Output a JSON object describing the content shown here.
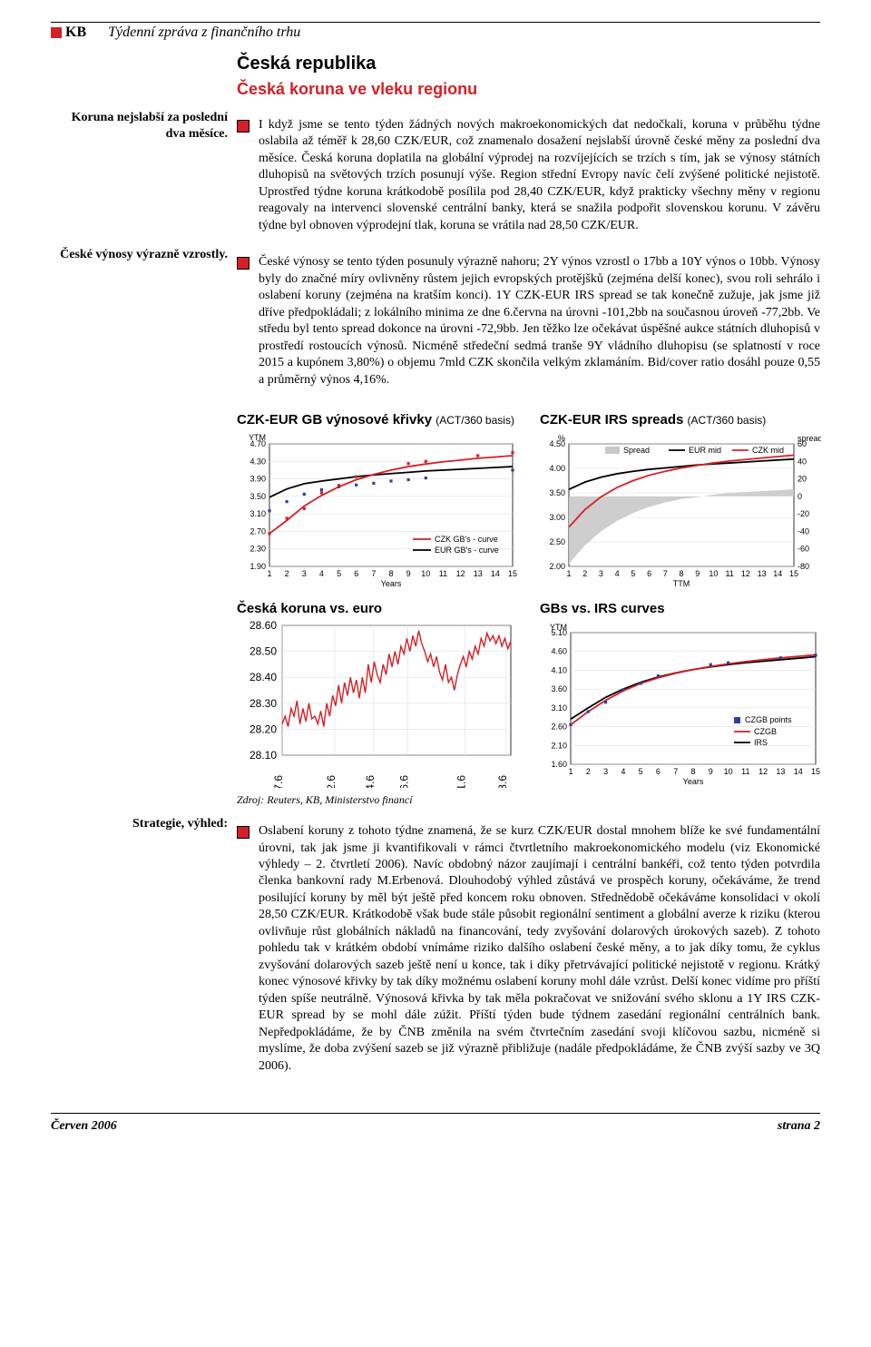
{
  "header": {
    "logo_text": "KB",
    "report_title": "Týdenní zpráva z finančního trhu"
  },
  "titles": {
    "country": "Česká republika",
    "subtitle": "Česká koruna ve vleku regionu"
  },
  "left_notes": {
    "p1": "Koruna nejslabší za poslední dva měsíce.",
    "p2": "České výnosy výrazně vzrostly.",
    "p3": "Strategie, výhled:"
  },
  "paras": {
    "p1": "I když jsme se tento týden žádných nových makroekonomických dat nedočkali, koruna v průběhu týdne oslabila až téměř k 28,60 CZK/EUR, což znamenalo dosažení nejslabší úrovně české měny za poslední dva měsíce. Česká koruna doplatila na globální výprodej na rozvíjejících se trzích s tím, jak se výnosy státních dluhopisů na světových trzích posunují výše. Region střední Evropy navíc čelí zvýšené politické nejistotě. Uprostřed týdne koruna krátkodobě posílila pod 28,40 CZK/EUR, když prakticky všechny měny v regionu reagovaly na intervenci slovenské centrální banky, která se snažila podpořit slovenskou korunu. V závěru týdne byl obnoven výprodejní tlak, koruna se vrátila nad 28,50 CZK/EUR.",
    "p2": "České výnosy se tento týden posunuly výrazně nahoru; 2Y výnos vzrostl o 17bb a 10Y výnos o 10bb. Výnosy byly do značné míry ovlivněny růstem jejich evropských protějšků (zejména delší konec), svou roli sehrálo i oslabení koruny (zejména na kratším konci). 1Y CZK-EUR IRS spread se tak konečně zužuje, jak jsme již dříve předpokládali; z lokálního minima ze dne 6.června na úrovni -101,2bb na současnou úroveň -77,2bb. Ve středu byl tento spread dokonce na úrovni -72,9bb. Jen těžko lze očekávat úspěšné aukce státních dluhopisů v prostředí rostoucích výnosů. Nicméně středeční sedmá tranše 9Y vládního dluhopisu (se splatností v roce 2015 a kupónem 3,80%) o objemu 7mld CZK skončila velkým zklamáním. Bid/cover ratio dosáhl pouze 0,55 a průměrný výnos 4,16%.",
    "p3": "Oslabení koruny z tohoto týdne znamená, že se kurz CZK/EUR dostal mnohem blíže ke své fundamentální úrovni, tak jak jsme ji kvantifikovali v rámci čtvrtletního makroekonomického modelu (viz Ekonomické výhledy – 2. čtvrtletí 2006). Navíc obdobný názor zaujímají i centrální bankéři, což tento týden potvrdila členka bankovní rady M.Erbenová. Dlouhodobý výhled zůstává ve prospěch koruny, očekáváme, že trend posilující koruny by měl být ještě před koncem roku obnoven. Střednědobě očekáváme konsolidaci v okolí 28,50 CZK/EUR. Krátkodobě však bude stále působit regionální sentiment a globální averze k riziku (kterou ovlivňuje růst globálních nákladů na financování, tedy zvyšování dolarových úrokových sazeb). Z tohoto pohledu tak v krátkém období vnímáme riziko dalšího oslabení české měny, a to jak díky tomu, že cyklus zvyšování dolarových sazeb ještě není u konce, tak i díky přetrvávající politické nejistotě v regionu. Krátký konec výnosové křivky by tak díky možnému oslabení koruny mohl dále vzrůst. Delší konec vidíme pro příští týden spíše neutrálně. Výnosová křivka by tak měla pokračovat ve snižování svého sklonu a 1Y IRS CZK-EUR spread by se mohl dále zúžit. Příští týden bude týdnem zasedání regionální centrálních bank. Nepředpokládáme, že by ČNB změnila na svém čtvrtečním zasedání svoji klíčovou sazbu, nicméně si myslíme, že doba zvýšení sazeb se již výrazně přibližuje (nadále předpokládáme, že ČNB zvýší sazby ve 3Q 2006)."
  },
  "chart_titles": {
    "c1": "CZK-EUR GB výnosové křivky",
    "c1_sub": "(ACT/360 basis)",
    "c2": "CZK-EUR IRS spreads",
    "c2_sub": "(ACT/360 basis)",
    "c3": "Česká koruna vs. euro",
    "c4": "GBs vs. IRS curves"
  },
  "source_line": "Zdroj: Reuters, KB, Ministerstvo financí",
  "footer": {
    "left": "Červen 2006",
    "right": "strana 2"
  },
  "chart1": {
    "type": "line",
    "ylabel": "YTM",
    "xlabel": "Years",
    "ylim": [
      1.9,
      4.7
    ],
    "yticks": [
      1.9,
      2.3,
      2.7,
      3.1,
      3.5,
      3.9,
      4.3,
      4.7
    ],
    "xticks": [
      1,
      2,
      3,
      4,
      5,
      6,
      7,
      8,
      9,
      10,
      11,
      12,
      13,
      14,
      15
    ],
    "legend": [
      "CZK GB's - curve",
      "EUR GB's - curve"
    ],
    "colors": {
      "czk_line": "#d42027",
      "eur_line": "#000000",
      "czk_points": "#d42027",
      "eur_points": "#2f3f9a",
      "grid": "#e0e0e0",
      "bg": "#ffffff",
      "text": "#000000"
    },
    "czk_line_y": [
      2.65,
      2.95,
      3.28,
      3.52,
      3.72,
      3.88,
      4.0,
      4.1,
      4.18,
      4.24,
      4.29,
      4.33,
      4.37,
      4.4,
      4.43
    ],
    "eur_line_y": [
      3.48,
      3.67,
      3.79,
      3.85,
      3.9,
      3.95,
      3.99,
      4.02,
      4.05,
      4.08,
      4.1,
      4.12,
      4.14,
      4.16,
      4.18
    ],
    "czk_points_xy": [
      [
        1,
        2.65
      ],
      [
        2,
        3.0
      ],
      [
        3,
        3.22
      ],
      [
        4,
        3.58
      ],
      [
        5,
        3.75
      ],
      [
        6,
        3.95
      ],
      [
        9,
        4.25
      ],
      [
        10,
        4.3
      ],
      [
        13,
        4.43
      ],
      [
        15,
        4.5
      ]
    ],
    "eur_points_xy": [
      [
        1,
        3.17
      ],
      [
        2,
        3.38
      ],
      [
        3,
        3.55
      ],
      [
        4,
        3.65
      ],
      [
        5,
        3.72
      ],
      [
        6,
        3.76
      ],
      [
        7,
        3.8
      ],
      [
        8,
        3.85
      ],
      [
        9,
        3.88
      ],
      [
        10,
        3.92
      ],
      [
        15,
        4.1
      ]
    ],
    "line_width": 1.8,
    "point_size": 3.2,
    "font_size": 9
  },
  "chart2": {
    "type": "line-with-fill",
    "ylabel_left": "%",
    "ylabel_right": "spread",
    "xlabel": "TTM",
    "ylim_left": [
      2.0,
      4.5
    ],
    "yticks_left": [
      2.0,
      2.5,
      3.0,
      3.5,
      4.0,
      4.5
    ],
    "ylim_right": [
      -80,
      60
    ],
    "yticks_right": [
      -80,
      -60,
      -40,
      -20,
      0,
      20,
      40,
      60
    ],
    "xticks": [
      1,
      2,
      3,
      4,
      5,
      6,
      7,
      8,
      9,
      10,
      11,
      12,
      13,
      14,
      15
    ],
    "legend": [
      "Spread",
      "EUR mid",
      "CZK mid"
    ],
    "colors": {
      "eur_mid": "#000000",
      "czk_mid": "#d42027",
      "spread_fill": "#c9c9c9",
      "grid": "#e0e0e0",
      "bg": "#ffffff",
      "text": "#000000"
    },
    "eur_mid_y": [
      3.57,
      3.72,
      3.82,
      3.89,
      3.94,
      3.98,
      4.01,
      4.04,
      4.07,
      4.09,
      4.11,
      4.13,
      4.15,
      4.17,
      4.19
    ],
    "czk_mid_y": [
      2.8,
      3.16,
      3.42,
      3.61,
      3.75,
      3.86,
      3.94,
      4.01,
      4.06,
      4.11,
      4.15,
      4.18,
      4.21,
      4.24,
      4.27
    ],
    "spread_r": [
      -77,
      -56,
      -40,
      -28,
      -19,
      -12,
      -7,
      -3,
      -1,
      2,
      4,
      5,
      6,
      7,
      8
    ],
    "line_width": 1.8,
    "font_size": 9
  },
  "chart3": {
    "type": "line",
    "ylim": [
      28.1,
      28.6
    ],
    "yticks": [
      28.1,
      28.2,
      28.3,
      28.4,
      28.5,
      28.6
    ],
    "xticks_labels": [
      "7.6",
      "12.6",
      "14.6",
      "16.6",
      "21.6",
      "23.6"
    ],
    "xticks_pos": [
      0,
      0.23,
      0.4,
      0.55,
      0.8,
      0.98
    ],
    "colors": {
      "line": "#d42027",
      "grid": "#e0e0e0",
      "bg": "#ffffff",
      "text": "#000000"
    },
    "y": [
      28.22,
      28.25,
      28.21,
      28.28,
      28.25,
      28.31,
      28.22,
      28.28,
      28.23,
      28.3,
      28.24,
      28.25,
      28.22,
      28.27,
      28.21,
      28.3,
      28.25,
      28.33,
      28.29,
      28.37,
      28.3,
      28.38,
      28.33,
      28.4,
      28.34,
      28.39,
      28.32,
      28.4,
      28.34,
      28.45,
      28.38,
      28.46,
      28.41,
      28.38,
      28.45,
      28.41,
      28.49,
      28.44,
      28.5,
      28.45,
      28.52,
      28.49,
      28.55,
      28.5,
      28.56,
      28.52,
      28.58,
      28.53,
      28.5,
      28.46,
      28.49,
      28.44,
      28.48,
      28.42,
      28.39,
      28.45,
      28.38,
      28.4,
      28.35,
      28.41,
      28.45,
      28.48,
      28.44,
      28.5,
      28.47,
      28.52,
      28.49,
      28.55,
      28.52,
      28.57,
      28.54,
      28.56,
      28.53,
      28.56,
      28.52,
      28.55,
      28.51,
      28.54
    ],
    "line_width": 1.4,
    "font_size": 12
  },
  "chart4": {
    "type": "line-scatter",
    "ylabel": "YTM",
    "xlabel": "Years",
    "ylim": [
      1.6,
      5.1
    ],
    "yticks": [
      1.6,
      2.1,
      2.6,
      3.1,
      3.6,
      4.1,
      4.6,
      5.1
    ],
    "xticks": [
      1,
      2,
      3,
      4,
      5,
      6,
      7,
      8,
      9,
      10,
      11,
      12,
      13,
      14,
      15
    ],
    "legend": [
      "CZGB points",
      "CZGB",
      "IRS"
    ],
    "colors": {
      "czgb_line": "#d42027",
      "irs_line": "#000000",
      "czgb_points": "#2f3f9a",
      "grid": "#e0e0e0",
      "bg": "#ffffff",
      "text": "#000000"
    },
    "czgb_y": [
      2.65,
      3.0,
      3.3,
      3.55,
      3.75,
      3.9,
      4.02,
      4.12,
      4.2,
      4.27,
      4.33,
      4.38,
      4.43,
      4.47,
      4.51
    ],
    "irs_y": [
      2.8,
      3.1,
      3.38,
      3.6,
      3.78,
      3.92,
      4.03,
      4.12,
      4.19,
      4.25,
      4.3,
      4.34,
      4.38,
      4.42,
      4.46
    ],
    "czgb_points_xy": [
      [
        1,
        2.65
      ],
      [
        2,
        3.0
      ],
      [
        3,
        3.25
      ],
      [
        4,
        3.58
      ],
      [
        5,
        3.75
      ],
      [
        6,
        3.95
      ],
      [
        9,
        4.25
      ],
      [
        10,
        4.3
      ],
      [
        13,
        4.43
      ],
      [
        15,
        4.5
      ]
    ],
    "line_width": 1.8,
    "point_size": 3.2,
    "font_size": 9
  }
}
